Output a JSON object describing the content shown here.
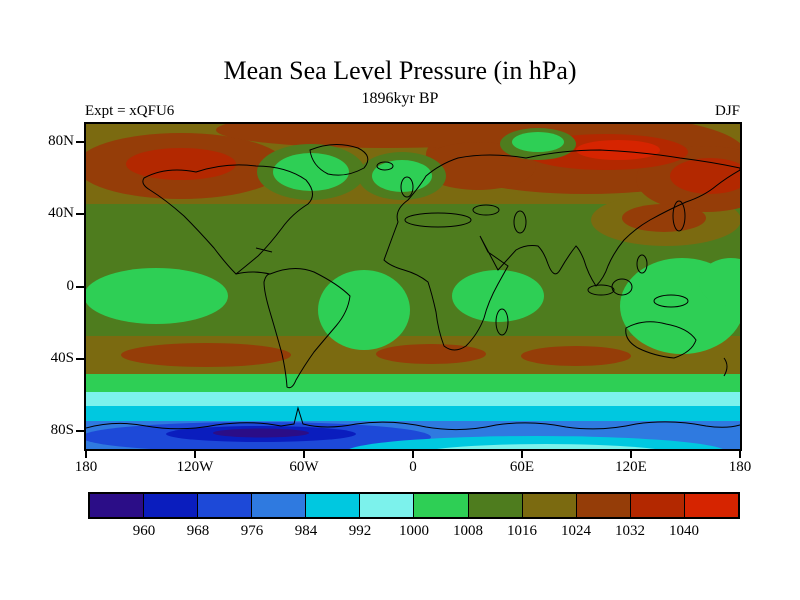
{
  "header": {
    "title": "Mean Sea Level Pressure (in hPa)",
    "subtitle": "1896kyr BP",
    "experiment": "Expt = xQFU6",
    "season": "DJF"
  },
  "axes": {
    "lat_ticks": [
      "80N",
      "40N",
      "0",
      "40S",
      "80S"
    ],
    "lon_ticks": [
      "180",
      "120W",
      "60W",
      "0",
      "60E",
      "120E",
      "180"
    ]
  },
  "colorbar": {
    "labels": [
      "960",
      "968",
      "976",
      "984",
      "992",
      "1000",
      "1008",
      "1016",
      "1024",
      "1032",
      "1040"
    ],
    "colors": [
      "#2b0d87",
      "#0a1dbe",
      "#1d49d8",
      "#2f7ae0",
      "#00c8e0",
      "#7cf2ec",
      "#2ecf55",
      "#4e7c1e",
      "#7b6a10",
      "#953d08",
      "#b32800",
      "#d62400"
    ],
    "units": "hPa"
  },
  "chart_data": {
    "type": "heatmap",
    "title": "Mean Sea Level Pressure (in hPa)",
    "subtitle": "1896kyr BP",
    "experiment": "xQFU6",
    "season": "DJF",
    "units": "hPa",
    "projection": "global equirectangular filled-contour map with coastlines",
    "lon_range": [
      -180,
      180
    ],
    "lat_range": [
      -90,
      90
    ],
    "lon_tick_values": [
      -180,
      -120,
      -60,
      0,
      60,
      120,
      180
    ],
    "lat_tick_values": [
      80,
      40,
      0,
      -40,
      -80
    ],
    "contour_levels": [
      960,
      968,
      976,
      984,
      992,
      1000,
      1008,
      1016,
      1024,
      1032,
      1040
    ],
    "palette": [
      "#2b0d87",
      "#0a1dbe",
      "#1d49d8",
      "#2f7ae0",
      "#00c8e0",
      "#7cf2ec",
      "#2ecf55",
      "#4e7c1e",
      "#7b6a10",
      "#953d08",
      "#b32800",
      "#d62400"
    ],
    "legend_position": "bottom horizontal labelbar, labels at color boundaries",
    "features": [
      "High pressure (1024 to >1040 hPa) dominates northern mid and high latitudes, strongest over Siberia, the North Pacific and northeast Asia",
      "Relative lows (1000-1008 hPa, green) near Greenland/Baffin, the Norwegian Sea, and a small Kara Sea patch",
      "Equatorial lows (1000-1008 hPa) over the east Pacific, South America, Africa and the Maritime Continent extending southeast of Australia",
      "Dark-red subtropical cell (1024-1032 hPa) over the Tibetan plateau / east Asia near 35N",
      "Brown subtropical ridge band (1016-1024 hPa) across 25-45S with 1024-1032 cells in the S Pacific, S Atlantic and S Indian oceans",
      "Circumpolar trough south of 50S: bands fall through 1000-992, 992-984, 984-976 to 968-960 and <960 hPa near 75-80S around 100W-40W",
      "Pressure rises again over the Antarctic interior (984-1000 hPa, cyan patches along the bottom edge)"
    ]
  }
}
